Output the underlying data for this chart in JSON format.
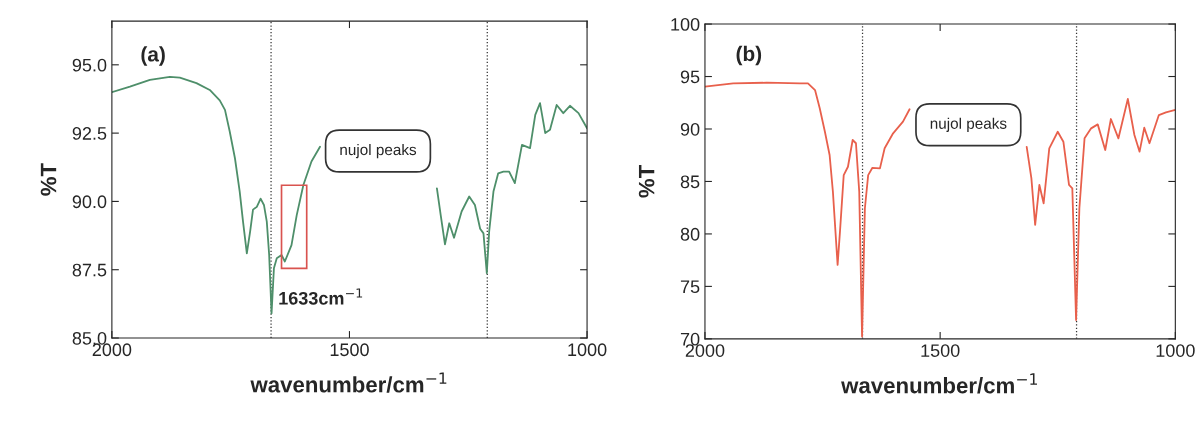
{
  "chart_data": [
    {
      "type": "line",
      "xlabel": "wavenumber/cm$^{−1}$",
      "ylabel": "%T",
      "xlim": [
        2000,
        1000
      ],
      "xticks": [
        2000,
        1500,
        1000
      ],
      "ylim": [
        85,
        96.6
      ],
      "yticks": [
        {
          "value": 85,
          "label": "85.0"
        },
        {
          "value": 87.5,
          "label": "87.5"
        },
        {
          "value": 90,
          "label": "90.0"
        },
        {
          "value": 92.5,
          "label": "92.5"
        },
        {
          "value": 95,
          "label": "95.0"
        }
      ],
      "grid": false,
      "legend": false,
      "marker": "none",
      "line_style": "solid",
      "ref_lines": [
        {
          "axis": "x",
          "value": 1665,
          "color": "#333333",
          "line_style": "dotted"
        },
        {
          "axis": "x",
          "value": 1210,
          "color": "#333333",
          "line_style": "dotted"
        }
      ],
      "annotations": [
        "(a)",
        "nujol peaks",
        "1633cm$^{−1}$"
      ],
      "series": [
        {
          "color": "#4e8f6a",
          "x": [
            2000,
            1962,
            1920,
            1878,
            1857,
            1822,
            1794,
            1773,
            1762,
            1752,
            1741,
            1731,
            1724,
            1716,
            1709,
            1703,
            1695,
            1687,
            1680,
            1674,
            1669,
            1664,
            1659,
            1653,
            1643,
            1636,
            1622,
            1611,
            1597,
            1580,
            1562,
            1440,
            1316,
            1308,
            1299,
            1290,
            1280,
            1264,
            1248,
            1236,
            1225,
            1218,
            1211,
            1206,
            1197,
            1187,
            1176,
            1164,
            1152,
            1137,
            1120,
            1109,
            1099,
            1088,
            1078,
            1064,
            1050,
            1036,
            1018,
            1000
          ],
          "values": [
            94.0,
            94.2,
            94.45,
            94.56,
            94.53,
            94.33,
            94.08,
            93.7,
            93.35,
            92.56,
            91.58,
            90.36,
            89.26,
            88.1,
            88.9,
            89.7,
            89.8,
            90.1,
            89.87,
            89.26,
            88.04,
            85.9,
            87.55,
            87.92,
            88.04,
            87.8,
            88.4,
            89.5,
            90.6,
            91.46,
            92.0,
            null,
            90.48,
            89.5,
            88.43,
            89.2,
            88.67,
            89.63,
            90.18,
            89.87,
            89.0,
            88.83,
            87.37,
            88.9,
            90.36,
            91.03,
            91.09,
            91.09,
            90.67,
            92.07,
            91.95,
            93.17,
            93.6,
            92.5,
            92.62,
            93.53,
            93.23,
            93.5,
            93.23,
            92.68
          ]
        }
      ]
    },
    {
      "type": "line",
      "xlabel": "wavenumber/cm$^{−1}$",
      "ylabel": "%T",
      "xlim": [
        2000,
        1000
      ],
      "xticks": [
        2000,
        1500,
        1000
      ],
      "ylim": [
        70,
        100
      ],
      "yticks": [
        70,
        75,
        80,
        85,
        90,
        95,
        100
      ],
      "grid": false,
      "legend": false,
      "marker": "none",
      "line_style": "solid",
      "ref_lines": [
        {
          "axis": "x",
          "value": 1665,
          "color": "#333333",
          "line_style": "dotted"
        },
        {
          "axis": "x",
          "value": 1210,
          "color": "#333333",
          "line_style": "dotted"
        }
      ],
      "annotations": [
        "(b)",
        "nujol peaks"
      ],
      "series": [
        {
          "color": "#e8604c",
          "x": [
            2000,
            1940,
            1869,
            1798,
            1781,
            1766,
            1756,
            1745,
            1735,
            1728,
            1718,
            1713,
            1705,
            1696,
            1686,
            1679,
            1672,
            1666,
            1660,
            1653,
            1644,
            1628,
            1618,
            1600,
            1579,
            1565,
            1440,
            1316,
            1306,
            1298,
            1289,
            1280,
            1268,
            1250,
            1238,
            1226,
            1219,
            1211,
            1204,
            1193,
            1179,
            1165,
            1149,
            1137,
            1121,
            1101,
            1087,
            1076,
            1066,
            1055,
            1035,
            1020,
            1000
          ],
          "values": [
            94.03,
            94.35,
            94.41,
            94.35,
            94.35,
            93.71,
            91.97,
            89.74,
            87.52,
            84.03,
            77.05,
            80.2,
            85.6,
            86.4,
            88.95,
            88.64,
            84.03,
            70.22,
            82.45,
            85.6,
            86.3,
            86.25,
            88.16,
            89.59,
            90.7,
            91.88,
            null,
            88.3,
            85.3,
            80.86,
            84.67,
            82.92,
            88.16,
            89.74,
            88.79,
            84.67,
            84.35,
            71.8,
            82.45,
            89.11,
            90.06,
            90.44,
            88.0,
            90.95,
            89.11,
            92.86,
            89.43,
            87.84,
            90.12,
            88.64,
            91.33,
            91.59,
            91.81
          ]
        }
      ]
    }
  ]
}
